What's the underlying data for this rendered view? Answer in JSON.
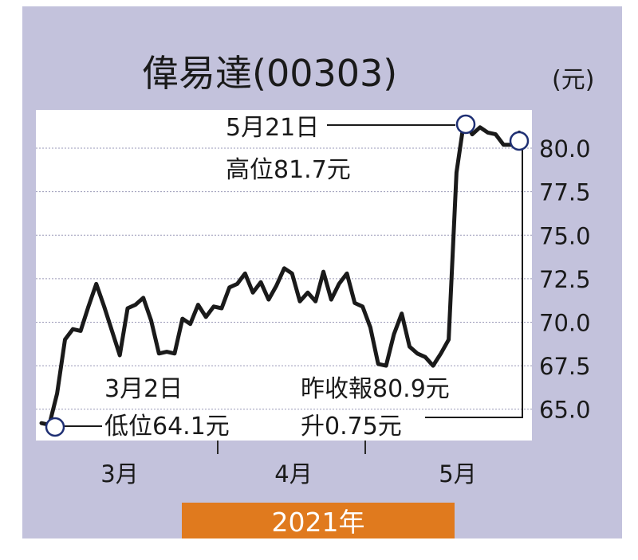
{
  "chart_data": {
    "type": "line",
    "title": "偉易達(00303)",
    "unit": "(元)",
    "y_ticks": [
      "65.0",
      "67.5",
      "70.0",
      "72.5",
      "75.0",
      "77.5",
      "80.0"
    ],
    "ylim": [
      63.2,
      82.2
    ],
    "x_ticks": [
      "3月",
      "4月",
      "5月"
    ],
    "year": "2021年",
    "annotations": {
      "low_date": "3月2日",
      "low_text": "低位64.1元",
      "high_date": "5月21日",
      "high_text": "高位81.7元",
      "close_text": "昨收報80.9元",
      "change_text": "升0.75元"
    },
    "series": [
      {
        "values": [
          64.2,
          64.1,
          65.9,
          69.0,
          69.6,
          69.5,
          70.9,
          72.2,
          70.9,
          69.5,
          68.1,
          70.8,
          71.0,
          71.4,
          70.1,
          68.2,
          68.3,
          68.2,
          70.2,
          69.9,
          71.0,
          70.3,
          70.9,
          70.8,
          72.0,
          72.2,
          72.8,
          71.7,
          72.3,
          71.3,
          72.1,
          73.1,
          72.8,
          71.2,
          71.7,
          71.2,
          72.9,
          71.3,
          72.2,
          72.8,
          71.1,
          70.9,
          69.7,
          67.6,
          67.5,
          69.3,
          70.5,
          68.6,
          68.2,
          68.0,
          67.5,
          68.2,
          69.0,
          78.6,
          81.7,
          80.8,
          81.2,
          80.9,
          80.8,
          80.2,
          80.2,
          80.9
        ]
      }
    ]
  }
}
